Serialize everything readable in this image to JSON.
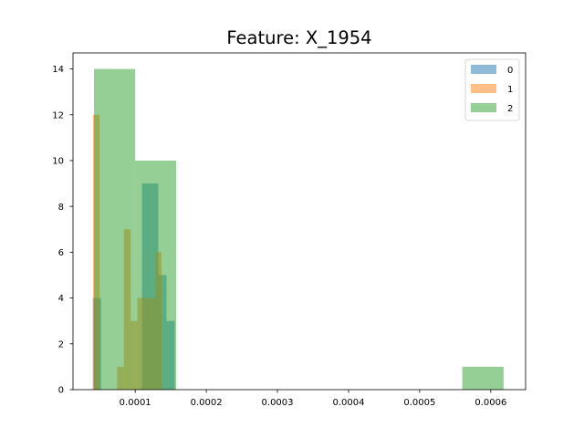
{
  "chart_data": {
    "type": "histogram",
    "title": "Feature: X_1954",
    "xlabel": "",
    "ylabel": "",
    "xlim": [
      1.25e-05,
      0.000649
    ],
    "ylim": [
      0,
      14.7
    ],
    "xticks": [
      0.0001,
      0.0002,
      0.0003,
      0.0004,
      0.0005,
      0.0006
    ],
    "xtick_labels": [
      "0.0001",
      "0.0002",
      "0.0003",
      "0.0004",
      "0.0005",
      "0.0006"
    ],
    "yticks": [
      0,
      2,
      4,
      6,
      8,
      10,
      12,
      14
    ],
    "ytick_labels": [
      "0",
      "2",
      "4",
      "6",
      "8",
      "10",
      "12",
      "14"
    ],
    "legend_position": "upper right",
    "series": [
      {
        "name": "0",
        "color": "#1f77b4",
        "alpha": 0.5,
        "bins": [
          {
            "x0": 4.05e-05,
            "x1": 5.2e-05,
            "count": 4
          },
          {
            "x0": 0.0001095,
            "x1": 0.0001325,
            "count": 9
          },
          {
            "x0": 0.0001325,
            "x1": 0.000144,
            "count": 5
          },
          {
            "x0": 0.000144,
            "x1": 0.0001555,
            "count": 3
          }
        ]
      },
      {
        "name": "1",
        "color": "#ff7f0e",
        "alpha": 0.5,
        "bins": [
          {
            "x0": 4.05e-05,
            "x1": 5e-05,
            "count": 12
          },
          {
            "x0": 7.45e-05,
            "x1": 8.4e-05,
            "count": 1
          },
          {
            "x0": 8.4e-05,
            "x1": 9.35e-05,
            "count": 7
          },
          {
            "x0": 9.35e-05,
            "x1": 0.000103,
            "count": 3
          },
          {
            "x0": 0.000103,
            "x1": 0.0001285,
            "count": 4
          },
          {
            "x0": 0.0001285,
            "x1": 0.000137,
            "count": 6
          }
        ]
      },
      {
        "name": "2",
        "color": "#2ca02c",
        "alpha": 0.5,
        "bins": [
          {
            "x0": 4.2e-05,
            "x1": 0.0001,
            "count": 14
          },
          {
            "x0": 0.0001,
            "x1": 0.0001575,
            "count": 10
          },
          {
            "x0": 0.00056,
            "x1": 0.000618,
            "count": 1
          }
        ]
      }
    ]
  }
}
